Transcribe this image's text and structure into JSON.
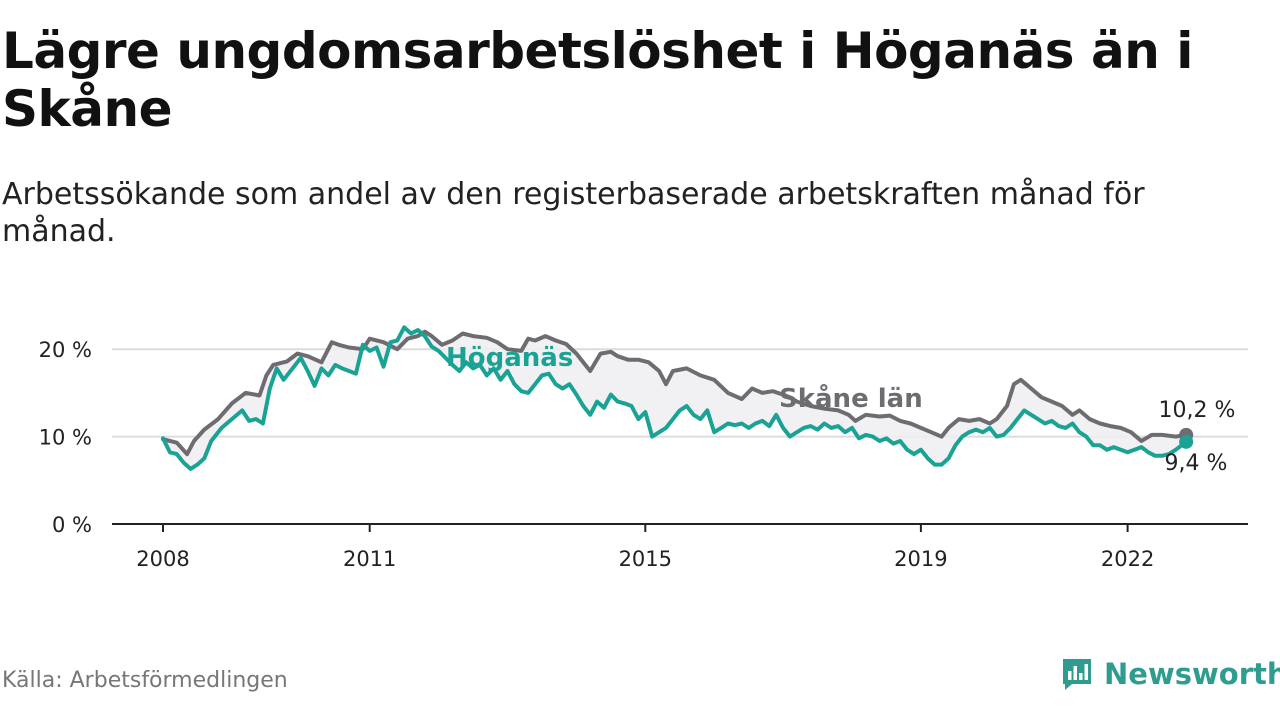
{
  "chart_data": {
    "type": "line",
    "title": "Lägre ungdomsarbetslöshet i Höganäs än i Skåne",
    "subtitle": "Arbetssökande som andel av den registerbaserade arbetskraften månad för månad.",
    "ylim": [
      0,
      25
    ],
    "xlim": [
      2008.0,
      2022.95
    ],
    "y_ticks": [
      0,
      10,
      20
    ],
    "y_tick_labels": [
      "0 %",
      "10 %",
      "20 %"
    ],
    "x_ticks": [
      2008,
      2011,
      2015,
      2019,
      2022
    ],
    "x_tick_labels": [
      "2008",
      "2011",
      "2015",
      "2019",
      "2022"
    ],
    "series": [
      {
        "name": "Skåne län",
        "color": "#6e6c70",
        "x": [
          2008.0,
          2008.2,
          2008.35,
          2008.45,
          2008.6,
          2008.8,
          2009.0,
          2009.2,
          2009.4,
          2009.5,
          2009.6,
          2009.8,
          2009.95,
          2010.1,
          2010.3,
          2010.45,
          2010.55,
          2010.7,
          2010.9,
          2011.0,
          2011.2,
          2011.4,
          2011.55,
          2011.7,
          2011.8,
          2011.9,
          2012.05,
          2012.2,
          2012.35,
          2012.5,
          2012.7,
          2012.85,
          2013.0,
          2013.2,
          2013.3,
          2013.4,
          2013.55,
          2013.7,
          2013.85,
          2014.0,
          2014.2,
          2014.35,
          2014.5,
          2014.6,
          2014.75,
          2014.9,
          2015.05,
          2015.2,
          2015.3,
          2015.4,
          2015.6,
          2015.8,
          2016.0,
          2016.2,
          2016.4,
          2016.55,
          2016.7,
          2016.85,
          2017.0,
          2017.1,
          2017.2,
          2017.4,
          2017.6,
          2017.8,
          2017.95,
          2018.05,
          2018.2,
          2018.4,
          2018.55,
          2018.7,
          2018.85,
          2019.0,
          2019.15,
          2019.3,
          2019.4,
          2019.55,
          2019.7,
          2019.85,
          2020.0,
          2020.1,
          2020.25,
          2020.35,
          2020.45,
          2020.6,
          2020.75,
          2020.9,
          2021.05,
          2021.2,
          2021.3,
          2021.45,
          2021.6,
          2021.75,
          2021.9,
          2022.05,
          2022.2,
          2022.35,
          2022.5,
          2022.7,
          2022.85
        ],
        "values": [
          9.7,
          9.3,
          8.0,
          9.5,
          10.8,
          12.0,
          13.8,
          15.0,
          14.7,
          17.0,
          18.2,
          18.6,
          19.5,
          19.2,
          18.5,
          20.8,
          20.5,
          20.2,
          20.0,
          21.2,
          20.8,
          20.0,
          21.2,
          21.5,
          22.0,
          21.5,
          20.5,
          21.0,
          21.8,
          21.5,
          21.3,
          20.8,
          20.0,
          19.8,
          21.2,
          21.0,
          21.5,
          21.0,
          20.6,
          19.5,
          17.5,
          19.5,
          19.7,
          19.2,
          18.8,
          18.8,
          18.5,
          17.5,
          16.0,
          17.5,
          17.8,
          17.0,
          16.5,
          15.0,
          14.3,
          15.5,
          15.0,
          15.2,
          14.8,
          14.5,
          14.0,
          13.5,
          13.2,
          13.0,
          12.5,
          11.8,
          12.5,
          12.3,
          12.4,
          11.8,
          11.5,
          11.0,
          10.5,
          10.0,
          11.0,
          12.0,
          11.8,
          12.0,
          11.5,
          12.0,
          13.5,
          16.0,
          16.5,
          15.5,
          14.5,
          14.0,
          13.5,
          12.5,
          13.0,
          12.0,
          11.5,
          11.2,
          11.0,
          10.5,
          9.5,
          10.2,
          10.2,
          10.0,
          10.2
        ]
      },
      {
        "name": "Höganäs",
        "color": "#1aa394",
        "x": [
          2008.0,
          2008.1,
          2008.2,
          2008.3,
          2008.4,
          2008.5,
          2008.6,
          2008.7,
          2008.85,
          2009.0,
          2009.15,
          2009.25,
          2009.35,
          2009.45,
          2009.55,
          2009.65,
          2009.75,
          2009.9,
          2010.0,
          2010.1,
          2010.2,
          2010.3,
          2010.4,
          2010.5,
          2010.6,
          2010.7,
          2010.8,
          2010.9,
          2011.0,
          2011.1,
          2011.2,
          2011.3,
          2011.4,
          2011.5,
          2011.6,
          2011.7,
          2011.8,
          2011.9,
          2012.0,
          2012.1,
          2012.2,
          2012.3,
          2012.4,
          2012.5,
          2012.6,
          2012.7,
          2012.8,
          2012.9,
          2013.0,
          2013.1,
          2013.2,
          2013.3,
          2013.4,
          2013.5,
          2013.6,
          2013.7,
          2013.8,
          2013.9,
          2014.0,
          2014.1,
          2014.2,
          2014.3,
          2014.4,
          2014.5,
          2014.6,
          2014.7,
          2014.8,
          2014.9,
          2015.0,
          2015.1,
          2015.2,
          2015.3,
          2015.4,
          2015.5,
          2015.6,
          2015.7,
          2015.8,
          2015.9,
          2016.0,
          2016.1,
          2016.2,
          2016.3,
          2016.4,
          2016.5,
          2016.6,
          2016.7,
          2016.8,
          2016.9,
          2017.0,
          2017.1,
          2017.2,
          2017.3,
          2017.4,
          2017.5,
          2017.6,
          2017.7,
          2017.8,
          2017.9,
          2018.0,
          2018.1,
          2018.2,
          2018.3,
          2018.4,
          2018.5,
          2018.6,
          2018.7,
          2018.8,
          2018.9,
          2019.0,
          2019.1,
          2019.2,
          2019.3,
          2019.4,
          2019.5,
          2019.6,
          2019.7,
          2019.8,
          2019.9,
          2020.0,
          2020.1,
          2020.2,
          2020.3,
          2020.4,
          2020.5,
          2020.6,
          2020.7,
          2020.8,
          2020.9,
          2021.0,
          2021.1,
          2021.2,
          2021.3,
          2021.4,
          2021.5,
          2021.6,
          2021.7,
          2021.8,
          2021.9,
          2022.0,
          2022.1,
          2022.2,
          2022.3,
          2022.4,
          2022.5,
          2022.6,
          2022.7,
          2022.85
        ],
        "values": [
          9.8,
          8.2,
          8.0,
          7.0,
          6.3,
          6.8,
          7.5,
          9.5,
          11.0,
          12.0,
          13.0,
          11.8,
          12.0,
          11.5,
          15.5,
          17.8,
          16.5,
          18.0,
          19.0,
          17.5,
          15.8,
          17.8,
          17.0,
          18.2,
          17.8,
          17.5,
          17.2,
          20.5,
          19.8,
          20.2,
          18.0,
          20.8,
          21.0,
          22.5,
          21.8,
          22.2,
          21.5,
          20.3,
          19.8,
          19.0,
          18.2,
          17.5,
          18.5,
          17.8,
          18.2,
          17.0,
          17.8,
          16.5,
          17.5,
          16.0,
          15.2,
          15.0,
          16.0,
          17.0,
          17.2,
          16.0,
          15.5,
          16.0,
          14.8,
          13.5,
          12.5,
          14.0,
          13.3,
          14.8,
          14.0,
          13.8,
          13.5,
          12.0,
          12.8,
          10.0,
          10.5,
          11.0,
          12.0,
          13.0,
          13.5,
          12.5,
          12.0,
          13.0,
          10.5,
          11.0,
          11.5,
          11.3,
          11.5,
          11.0,
          11.5,
          11.8,
          11.2,
          12.5,
          11.0,
          10.0,
          10.5,
          11.0,
          11.2,
          10.8,
          11.5,
          11.0,
          11.2,
          10.5,
          11.0,
          9.8,
          10.2,
          10.0,
          9.5,
          9.8,
          9.2,
          9.5,
          8.5,
          8.0,
          8.5,
          7.5,
          6.8,
          6.8,
          7.5,
          9.0,
          10.0,
          10.5,
          10.8,
          10.5,
          11.0,
          10.0,
          10.2,
          11.0,
          12.0,
          13.0,
          12.5,
          12.0,
          11.5,
          11.8,
          11.2,
          11.0,
          11.5,
          10.5,
          10.0,
          9.0,
          9.0,
          8.5,
          8.8,
          8.5,
          8.2,
          8.5,
          8.8,
          8.2,
          7.8,
          7.8,
          8.0,
          8.5,
          9.4
        ]
      }
    ],
    "annotations": [
      {
        "text": "Höganäs",
        "series": "Höganäs"
      },
      {
        "text": "Skåne län",
        "series": "Skåne län"
      },
      {
        "text": "10,2 %",
        "series": "Skåne län"
      },
      {
        "text": "9,4 %",
        "series": "Höganäs"
      }
    ]
  },
  "footer": {
    "source": "Källa: Arbetsförmedlingen",
    "brand": "Newsworthy"
  }
}
